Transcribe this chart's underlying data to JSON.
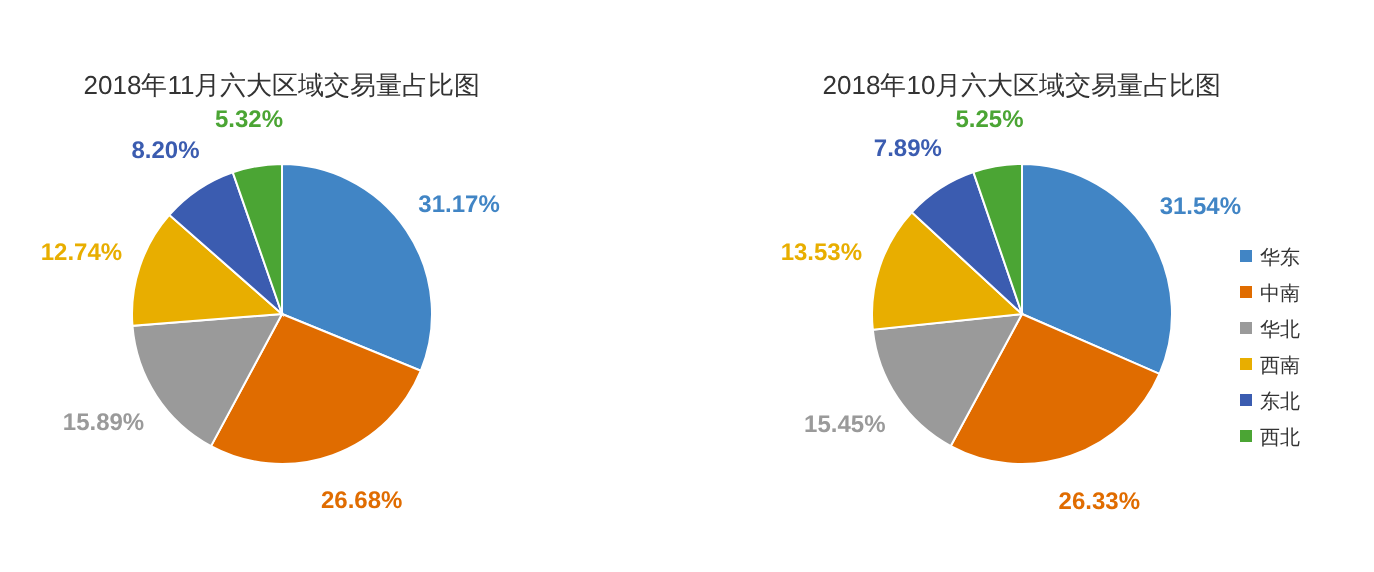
{
  "chart_data": [
    {
      "type": "pie",
      "title": "2018年11月六大区域交易量占比图",
      "categories": [
        null,
        null,
        null,
        null,
        null,
        null
      ],
      "values": [
        31.17,
        26.68,
        15.89,
        12.74,
        8.2,
        5.32
      ],
      "value_labels": [
        "31.17%",
        "26.68%",
        "15.89%",
        "12.74%",
        "8.20%",
        "5.32%"
      ],
      "colors": [
        "#4185c5",
        "#e06c00",
        "#9a9a9a",
        "#e8ae00",
        "#3b5cb0",
        "#4ba534"
      ],
      "legend": false
    },
    {
      "type": "pie",
      "title": "2018年10月六大区域交易量占比图",
      "categories": [
        "华东",
        "中南",
        "华北",
        "西南",
        "东北",
        "西北"
      ],
      "values": [
        31.54,
        26.33,
        15.45,
        13.53,
        7.89,
        5.25
      ],
      "value_labels": [
        "31.54%",
        "26.33%",
        "15.45%",
        "13.53%",
        "7.89%",
        "5.25%"
      ],
      "colors": [
        "#4185c5",
        "#e06c00",
        "#9a9a9a",
        "#e8ae00",
        "#3b5cb0",
        "#4ba534"
      ],
      "legend": "right"
    }
  ]
}
